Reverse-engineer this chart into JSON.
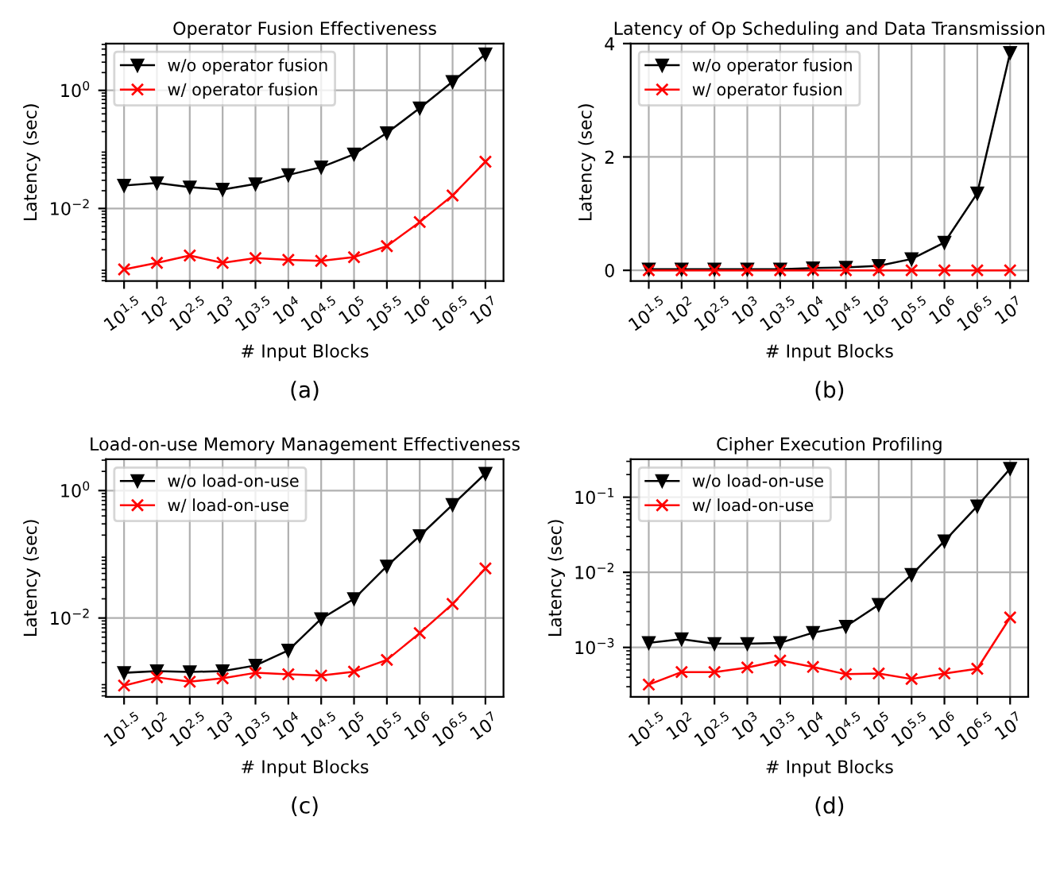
{
  "chart_data": [
    {
      "type": "line",
      "title": "Operator Fusion Effectiveness",
      "xlabel": "# Input Blocks",
      "ylabel": "Latency (sec)",
      "annotations": [
        "(a)"
      ],
      "categories": [
        "10$^{1.5}$",
        "10$^{2}$",
        "10$^{2.5}$",
        "10$^{3}$",
        "10$^{3.5}$",
        "10$^{4}$",
        "10$^{4.5}$",
        "10$^{5}$",
        "10$^{5.5}$",
        "10$^{6}$",
        "10$^{6.5}$",
        "10$^{7}$"
      ],
      "series": [
        {
          "name": "w/o operator fusion",
          "color": "#000000",
          "marker": "triangle",
          "values": [
            0.0245,
            0.027,
            0.023,
            0.021,
            0.026,
            0.037,
            0.05,
            0.083,
            0.19,
            0.5,
            1.4,
            4.1
          ]
        },
        {
          "name": "w/ operator fusion",
          "color": "#ff0000",
          "marker": "cross",
          "values": [
            0.00093,
            0.0012,
            0.0016,
            0.0012,
            0.00145,
            0.00135,
            0.0013,
            0.0015,
            0.0023,
            0.0059,
            0.0166,
            0.062
          ]
        }
      ],
      "log": "y",
      "ylim": [
        0.00059,
        6.2
      ],
      "yticks": [
        {
          "value": 0.01,
          "label": "10$^{−2}$"
        },
        {
          "value": 1,
          "label": "10$^{0}$"
        }
      ],
      "grid": true,
      "legend": "top left",
      "line_style": "solid"
    },
    {
      "type": "line",
      "title": "Latency of Op Scheduling and Data Transmission",
      "xlabel": "# Input Blocks",
      "ylabel": "Latency (sec)",
      "annotations": [
        "(b)"
      ],
      "categories": [
        "10$^{1.5}$",
        "10$^{2}$",
        "10$^{2.5}$",
        "10$^{3}$",
        "10$^{3.5}$",
        "10$^{4}$",
        "10$^{4.5}$",
        "10$^{5}$",
        "10$^{5.5}$",
        "10$^{6}$",
        "10$^{6.5}$",
        "10$^{7}$"
      ],
      "series": [
        {
          "name": "w/o operator fusion",
          "color": "#000000",
          "marker": "triangle",
          "values": [
            0.02,
            0.02,
            0.02,
            0.02,
            0.02,
            0.04,
            0.05,
            0.08,
            0.2,
            0.49,
            1.36,
            3.84
          ]
        },
        {
          "name": "w/ operator fusion",
          "color": "#ff0000",
          "marker": "cross",
          "values": [
            0.0,
            0.0,
            0.0,
            0.0,
            0.0,
            0.0,
            0.0,
            0.0,
            0.0,
            0.0,
            0.0,
            0.0
          ]
        }
      ],
      "ylim": [
        -0.19,
        4
      ],
      "yticks": [
        0,
        2,
        4
      ],
      "grid": true,
      "legend": "top left",
      "line_style": "solid"
    },
    {
      "type": "line",
      "title": "Load-on-use Memory Management Effectiveness",
      "xlabel": "# Input Blocks",
      "ylabel": "Latency (sec)",
      "annotations": [
        "(c)"
      ],
      "categories": [
        "10$^{1.5}$",
        "10$^{2}$",
        "10$^{2.5}$",
        "10$^{3}$",
        "10$^{3.5}$",
        "10$^{4}$",
        "10$^{4.5}$",
        "10$^{5}$",
        "10$^{5.5}$",
        "10$^{6}$",
        "10$^{6.5}$",
        "10$^{7}$"
      ],
      "series": [
        {
          "name": "w/o load-on-use",
          "color": "#000000",
          "marker": "triangle",
          "values": [
            0.00138,
            0.00147,
            0.00142,
            0.00147,
            0.0018,
            0.0031,
            0.0097,
            0.02,
            0.065,
            0.195,
            0.6,
            1.85
          ]
        },
        {
          "name": "w/ load-on-use",
          "color": "#ff0000",
          "marker": "cross",
          "values": [
            0.00087,
            0.00117,
            0.001,
            0.00113,
            0.00138,
            0.00131,
            0.00125,
            0.00144,
            0.0022,
            0.0058,
            0.0166,
            0.06
          ]
        }
      ],
      "log": "y",
      "ylim": [
        0.00058,
        3.1
      ],
      "yticks": [
        {
          "value": 0.01,
          "label": "10$^{−2}$"
        },
        {
          "value": 1,
          "label": "10$^{0}$"
        }
      ],
      "grid": true,
      "legend": "top left",
      "line_style": "solid"
    },
    {
      "type": "line",
      "title": "Cipher Execution Profiling",
      "xlabel": "# Input Blocks",
      "ylabel": "Latency (sec)",
      "annotations": [
        "(d)"
      ],
      "categories": [
        "10$^{1.5}$",
        "10$^{2}$",
        "10$^{2.5}$",
        "10$^{3}$",
        "10$^{3.5}$",
        "10$^{4}$",
        "10$^{4.5}$",
        "10$^{5}$",
        "10$^{5.5}$",
        "10$^{6}$",
        "10$^{6.5}$",
        "10$^{7}$"
      ],
      "series": [
        {
          "name": "w/o load-on-use",
          "color": "#000000",
          "marker": "triangle",
          "values": [
            0.00115,
            0.00129,
            0.00112,
            0.00112,
            0.00115,
            0.00157,
            0.0019,
            0.0037,
            0.0093,
            0.026,
            0.076,
            0.24
          ]
        },
        {
          "name": "w/ load-on-use",
          "color": "#ff0000",
          "marker": "cross",
          "values": [
            0.00032,
            0.00047,
            0.00047,
            0.00054,
            0.00067,
            0.00055,
            0.00044,
            0.00045,
            0.00038,
            0.00045,
            0.00052,
            0.0025
          ]
        }
      ],
      "log": "y",
      "ylim": [
        0.00022,
        0.32
      ],
      "yticks": [
        {
          "value": 0.001,
          "label": "10$^{−3}$"
        },
        {
          "value": 0.01,
          "label": "10$^{−2}$"
        },
        {
          "value": 0.1,
          "label": "10$^{−1}$"
        }
      ],
      "grid": true,
      "legend": "top left",
      "line_style": "solid"
    }
  ]
}
